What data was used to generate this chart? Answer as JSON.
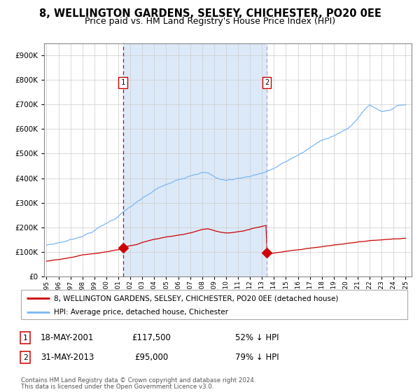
{
  "title": "8, WELLINGTON GARDENS, SELSEY, CHICHESTER, PO20 0EE",
  "subtitle": "Price paid vs. HM Land Registry's House Price Index (HPI)",
  "legend_line1": "8, WELLINGTON GARDENS, SELSEY, CHICHESTER, PO20 0EE (detached house)",
  "legend_line2": "HPI: Average price, detached house, Chichester",
  "footnote1": "Contains HM Land Registry data © Crown copyright and database right 2024.",
  "footnote2": "This data is licensed under the Open Government Licence v3.0.",
  "transaction1_date": "18-MAY-2001",
  "transaction1_price": "£117,500",
  "transaction1_hpi": "52% ↓ HPI",
  "transaction2_date": "31-MAY-2013",
  "transaction2_price": "£95,000",
  "transaction2_hpi": "79% ↓ HPI",
  "sale1_year": 2001.38,
  "sale1_price": 117500,
  "sale2_year": 2013.42,
  "sale2_price": 95000,
  "vline1_x": 2001.38,
  "vline2_x": 2013.42,
  "hpi_color": "#7ab8f5",
  "price_color": "#cc0000",
  "vline1_color": "#cc0000",
  "vline2_color": "#aaaacc",
  "shade_color": "#dce9f8",
  "ylim_min": 0,
  "ylim_max": 950000,
  "xlim_min": 1994.8,
  "xlim_max": 2025.5,
  "background_color": "#ffffff",
  "title_fontsize": 10.5,
  "subtitle_fontsize": 9,
  "hpi_anchors_x": [
    1995,
    1995.5,
    1996,
    1996.5,
    1997,
    1997.5,
    1998,
    1998.5,
    1999,
    1999.5,
    2000,
    2000.5,
    2001,
    2001.5,
    2002,
    2002.5,
    2003,
    2003.5,
    2004,
    2004.5,
    2005,
    2005.5,
    2006,
    2006.5,
    2007,
    2007.5,
    2008,
    2008.5,
    2009,
    2009.5,
    2010,
    2010.5,
    2011,
    2011.5,
    2012,
    2012.5,
    2013,
    2013.5,
    2014,
    2014.5,
    2015,
    2015.5,
    2016,
    2016.5,
    2017,
    2017.5,
    2018,
    2018.5,
    2019,
    2019.5,
    2020,
    2020.5,
    2021,
    2021.5,
    2022,
    2022.5,
    2023,
    2023.5,
    2024,
    2024.5,
    2025
  ],
  "hpi_anchors_y": [
    128000,
    132000,
    138000,
    143000,
    150000,
    158000,
    168000,
    178000,
    190000,
    205000,
    218000,
    233000,
    248000,
    268000,
    285000,
    300000,
    315000,
    330000,
    345000,
    358000,
    368000,
    375000,
    385000,
    395000,
    408000,
    418000,
    425000,
    420000,
    405000,
    395000,
    390000,
    393000,
    398000,
    402000,
    408000,
    415000,
    422000,
    430000,
    440000,
    453000,
    465000,
    478000,
    492000,
    505000,
    520000,
    535000,
    548000,
    560000,
    572000,
    583000,
    592000,
    610000,
    640000,
    670000,
    695000,
    680000,
    670000,
    675000,
    685000,
    695000,
    700000
  ],
  "price_anchors_x": [
    1995,
    1995.5,
    1996,
    1996.5,
    1997,
    1997.5,
    1998,
    1998.5,
    1999,
    1999.5,
    2000,
    2000.5,
    2001.35,
    2001.4,
    2002,
    2002.5,
    2003,
    2003.5,
    2004,
    2004.5,
    2005,
    2005.5,
    2006,
    2006.5,
    2007,
    2007.5,
    2008,
    2008.5,
    2009,
    2009.5,
    2010,
    2010.5,
    2011,
    2011.5,
    2012,
    2012.5,
    2013.35,
    2013.43,
    2014,
    2014.5,
    2015,
    2015.5,
    2016,
    2016.5,
    2017,
    2017.5,
    2018,
    2018.5,
    2019,
    2019.5,
    2020,
    2020.5,
    2021,
    2021.5,
    2022,
    2022.5,
    2023,
    2023.5,
    2024,
    2024.5,
    2025
  ],
  "price_anchors_y": [
    62000,
    64000,
    67000,
    70000,
    74000,
    79000,
    85000,
    88000,
    90000,
    93000,
    97000,
    102000,
    108000,
    117500,
    122000,
    127000,
    135000,
    143000,
    150000,
    155000,
    160000,
    163000,
    168000,
    172000,
    178000,
    185000,
    192000,
    195000,
    188000,
    182000,
    178000,
    180000,
    183000,
    187000,
    193000,
    200000,
    210000,
    95000,
    98000,
    102000,
    106000,
    110000,
    113000,
    116000,
    119000,
    122000,
    125000,
    128000,
    131000,
    133000,
    136000,
    138000,
    141000,
    143000,
    145000,
    147000,
    149000,
    150000,
    152000,
    153000,
    155000
  ]
}
